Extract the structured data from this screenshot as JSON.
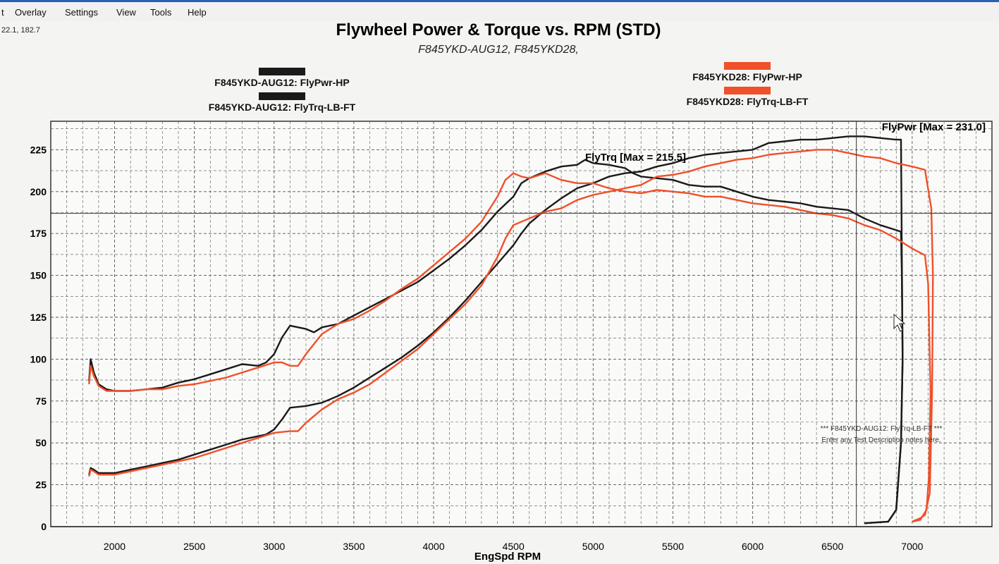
{
  "menu": {
    "items": [
      "t",
      "Overlay",
      "Settings",
      "View",
      "Tools",
      "Help"
    ]
  },
  "cursor_readout": "22.1, 182.7",
  "legend": {
    "left": [
      {
        "label": "F845YKD-AUG12: FlyPwr-HP",
        "color": "#1a1a1a"
      },
      {
        "label": "F845YKD-AUG12: FlyTrq-LB-FT",
        "color": "#1a1a1a"
      }
    ],
    "right": [
      {
        "label": "F845YKD28: FlyPwr-HP",
        "color": "#f0502a"
      },
      {
        "label": "F845YKD28: FlyTrq-LB-FT",
        "color": "#f0502a"
      }
    ]
  },
  "annotations": {
    "pwr_max": "FlyPwr [Max = 231.0]",
    "trq_max": "FlyTrq [Max = 215.5]",
    "note_line1": "*** F845YKD-AUG12: FlyTrq-LB-FT ***",
    "note_line2": "Enter any Test Description notes here."
  },
  "chart_data": {
    "type": "line",
    "title": "Flywheel Power & Torque vs. RPM (STD)",
    "subtitle": "F845YKD-AUG12, F845YKD28,",
    "xlabel": "EngSpd RPM",
    "ylabel": "",
    "xlim": [
      1600,
      7500
    ],
    "ylim": [
      0,
      242
    ],
    "xticks": [
      2000,
      2500,
      3000,
      3500,
      4000,
      4500,
      5000,
      5500,
      6000,
      6500,
      7000
    ],
    "yticks": [
      0,
      25,
      50,
      75,
      100,
      125,
      150,
      175,
      200,
      225
    ],
    "grid": true,
    "cursor": {
      "x": 6650,
      "y": 187
    },
    "series": [
      {
        "name": "F845YKD-AUG12: FlyTrq-LB-FT",
        "color": "#1a1a1a",
        "points": [
          [
            1840,
            87
          ],
          [
            1850,
            100
          ],
          [
            1870,
            92
          ],
          [
            1900,
            85
          ],
          [
            1950,
            82
          ],
          [
            2000,
            81
          ],
          [
            2100,
            81
          ],
          [
            2200,
            82
          ],
          [
            2300,
            83
          ],
          [
            2400,
            86
          ],
          [
            2500,
            88
          ],
          [
            2600,
            91
          ],
          [
            2700,
            94
          ],
          [
            2800,
            97
          ],
          [
            2900,
            96
          ],
          [
            2950,
            98
          ],
          [
            3000,
            103
          ],
          [
            3050,
            113
          ],
          [
            3100,
            120
          ],
          [
            3200,
            118
          ],
          [
            3250,
            116
          ],
          [
            3300,
            119
          ],
          [
            3400,
            121
          ],
          [
            3500,
            126
          ],
          [
            3600,
            131
          ],
          [
            3700,
            136
          ],
          [
            3800,
            141
          ],
          [
            3900,
            146
          ],
          [
            4000,
            153
          ],
          [
            4100,
            160
          ],
          [
            4200,
            168
          ],
          [
            4300,
            177
          ],
          [
            4400,
            188
          ],
          [
            4500,
            197
          ],
          [
            4550,
            205
          ],
          [
            4600,
            208
          ],
          [
            4700,
            212
          ],
          [
            4800,
            215
          ],
          [
            4900,
            216
          ],
          [
            4950,
            219
          ],
          [
            5000,
            217
          ],
          [
            5100,
            216
          ],
          [
            5200,
            214
          ],
          [
            5250,
            211
          ],
          [
            5300,
            209
          ],
          [
            5400,
            208
          ],
          [
            5500,
            207
          ],
          [
            5600,
            204
          ],
          [
            5700,
            203
          ],
          [
            5800,
            203
          ],
          [
            5900,
            200
          ],
          [
            6000,
            197
          ],
          [
            6100,
            195
          ],
          [
            6200,
            194
          ],
          [
            6300,
            193
          ],
          [
            6400,
            191
          ],
          [
            6500,
            190
          ],
          [
            6600,
            189
          ],
          [
            6700,
            184
          ],
          [
            6800,
            180
          ],
          [
            6900,
            177
          ],
          [
            6930,
            176
          ],
          [
            6935,
            150
          ],
          [
            6940,
            100
          ],
          [
            6930,
            50
          ],
          [
            6900,
            10
          ],
          [
            6850,
            3
          ],
          [
            6700,
            2
          ]
        ]
      },
      {
        "name": "F845YKD-AUG12: FlyPwr-HP",
        "color": "#1a1a1a",
        "points": [
          [
            1840,
            31
          ],
          [
            1850,
            35
          ],
          [
            1870,
            34
          ],
          [
            1900,
            32
          ],
          [
            2000,
            32
          ],
          [
            2100,
            34
          ],
          [
            2200,
            36
          ],
          [
            2300,
            38
          ],
          [
            2400,
            40
          ],
          [
            2500,
            43
          ],
          [
            2600,
            46
          ],
          [
            2700,
            49
          ],
          [
            2800,
            52
          ],
          [
            2900,
            54
          ],
          [
            2950,
            55
          ],
          [
            3000,
            58
          ],
          [
            3050,
            64
          ],
          [
            3100,
            71
          ],
          [
            3200,
            72
          ],
          [
            3300,
            74
          ],
          [
            3400,
            78
          ],
          [
            3500,
            83
          ],
          [
            3600,
            89
          ],
          [
            3700,
            95
          ],
          [
            3800,
            101
          ],
          [
            3900,
            108
          ],
          [
            4000,
            116
          ],
          [
            4100,
            125
          ],
          [
            4200,
            135
          ],
          [
            4300,
            146
          ],
          [
            4400,
            157
          ],
          [
            4500,
            168
          ],
          [
            4550,
            175
          ],
          [
            4600,
            181
          ],
          [
            4700,
            189
          ],
          [
            4800,
            196
          ],
          [
            4900,
            202
          ],
          [
            5000,
            205
          ],
          [
            5100,
            209
          ],
          [
            5200,
            211
          ],
          [
            5300,
            212
          ],
          [
            5400,
            215
          ],
          [
            5500,
            217
          ],
          [
            5600,
            220
          ],
          [
            5700,
            222
          ],
          [
            5800,
            223
          ],
          [
            5900,
            224
          ],
          [
            6000,
            225
          ],
          [
            6100,
            229
          ],
          [
            6200,
            230
          ],
          [
            6300,
            231
          ],
          [
            6400,
            231
          ],
          [
            6500,
            232
          ],
          [
            6600,
            233
          ],
          [
            6700,
            233
          ],
          [
            6800,
            232
          ],
          [
            6900,
            231
          ],
          [
            6930,
            231
          ],
          [
            6935,
            160
          ],
          [
            6940,
            100
          ],
          [
            6930,
            50
          ],
          [
            6900,
            10
          ],
          [
            6850,
            3
          ],
          [
            6700,
            2
          ]
        ]
      },
      {
        "name": "F845YKD28: FlyTrq-LB-FT",
        "color": "#f0502a",
        "points": [
          [
            1840,
            85
          ],
          [
            1850,
            96
          ],
          [
            1870,
            90
          ],
          [
            1900,
            84
          ],
          [
            1950,
            81
          ],
          [
            2000,
            81
          ],
          [
            2100,
            81
          ],
          [
            2200,
            82
          ],
          [
            2300,
            82
          ],
          [
            2400,
            84
          ],
          [
            2500,
            85
          ],
          [
            2600,
            87
          ],
          [
            2700,
            89
          ],
          [
            2800,
            92
          ],
          [
            2900,
            95
          ],
          [
            3000,
            98
          ],
          [
            3050,
            98
          ],
          [
            3100,
            96
          ],
          [
            3150,
            96
          ],
          [
            3200,
            103
          ],
          [
            3300,
            115
          ],
          [
            3350,
            118
          ],
          [
            3400,
            121
          ],
          [
            3500,
            124
          ],
          [
            3600,
            129
          ],
          [
            3700,
            135
          ],
          [
            3800,
            142
          ],
          [
            3900,
            148
          ],
          [
            4000,
            156
          ],
          [
            4100,
            164
          ],
          [
            4200,
            172
          ],
          [
            4300,
            182
          ],
          [
            4400,
            197
          ],
          [
            4450,
            207
          ],
          [
            4500,
            211
          ],
          [
            4550,
            209
          ],
          [
            4600,
            208
          ],
          [
            4700,
            211
          ],
          [
            4800,
            207
          ],
          [
            4900,
            205
          ],
          [
            5000,
            205
          ],
          [
            5100,
            202
          ],
          [
            5200,
            200
          ],
          [
            5300,
            199
          ],
          [
            5400,
            201
          ],
          [
            5500,
            200
          ],
          [
            5600,
            199
          ],
          [
            5700,
            197
          ],
          [
            5800,
            197
          ],
          [
            5900,
            195
          ],
          [
            6000,
            193
          ],
          [
            6100,
            192
          ],
          [
            6200,
            191
          ],
          [
            6300,
            189
          ],
          [
            6400,
            187
          ],
          [
            6500,
            186
          ],
          [
            6600,
            184
          ],
          [
            6700,
            180
          ],
          [
            6800,
            177
          ],
          [
            6900,
            172
          ],
          [
            7000,
            166
          ],
          [
            7080,
            162
          ],
          [
            7100,
            145
          ],
          [
            7115,
            80
          ],
          [
            7105,
            30
          ],
          [
            7090,
            10
          ],
          [
            7050,
            4
          ],
          [
            7000,
            3
          ]
        ]
      },
      {
        "name": "F845YKD28: FlyPwr-HP",
        "color": "#f0502a",
        "points": [
          [
            1840,
            30
          ],
          [
            1850,
            34
          ],
          [
            1870,
            33
          ],
          [
            1900,
            31
          ],
          [
            2000,
            31
          ],
          [
            2100,
            33
          ],
          [
            2200,
            35
          ],
          [
            2300,
            37
          ],
          [
            2400,
            39
          ],
          [
            2500,
            41
          ],
          [
            2600,
            44
          ],
          [
            2700,
            47
          ],
          [
            2800,
            50
          ],
          [
            2900,
            53
          ],
          [
            3000,
            56
          ],
          [
            3100,
            57
          ],
          [
            3150,
            57
          ],
          [
            3200,
            62
          ],
          [
            3300,
            70
          ],
          [
            3400,
            76
          ],
          [
            3500,
            80
          ],
          [
            3600,
            85
          ],
          [
            3700,
            92
          ],
          [
            3800,
            99
          ],
          [
            3900,
            106
          ],
          [
            4000,
            115
          ],
          [
            4100,
            124
          ],
          [
            4200,
            133
          ],
          [
            4300,
            144
          ],
          [
            4400,
            161
          ],
          [
            4450,
            172
          ],
          [
            4500,
            180
          ],
          [
            4600,
            184
          ],
          [
            4700,
            188
          ],
          [
            4800,
            190
          ],
          [
            4900,
            195
          ],
          [
            5000,
            198
          ],
          [
            5100,
            200
          ],
          [
            5200,
            202
          ],
          [
            5300,
            204
          ],
          [
            5400,
            209
          ],
          [
            5500,
            210
          ],
          [
            5600,
            212
          ],
          [
            5700,
            215
          ],
          [
            5800,
            217
          ],
          [
            5900,
            219
          ],
          [
            6000,
            220
          ],
          [
            6100,
            222
          ],
          [
            6200,
            223
          ],
          [
            6300,
            224
          ],
          [
            6400,
            225
          ],
          [
            6500,
            225
          ],
          [
            6600,
            223
          ],
          [
            6700,
            221
          ],
          [
            6800,
            220
          ],
          [
            6900,
            217
          ],
          [
            7000,
            215
          ],
          [
            7080,
            213
          ],
          [
            7120,
            190
          ],
          [
            7130,
            150
          ],
          [
            7125,
            80
          ],
          [
            7110,
            20
          ],
          [
            7080,
            7
          ],
          [
            7050,
            5
          ],
          [
            7000,
            3
          ]
        ]
      }
    ]
  }
}
